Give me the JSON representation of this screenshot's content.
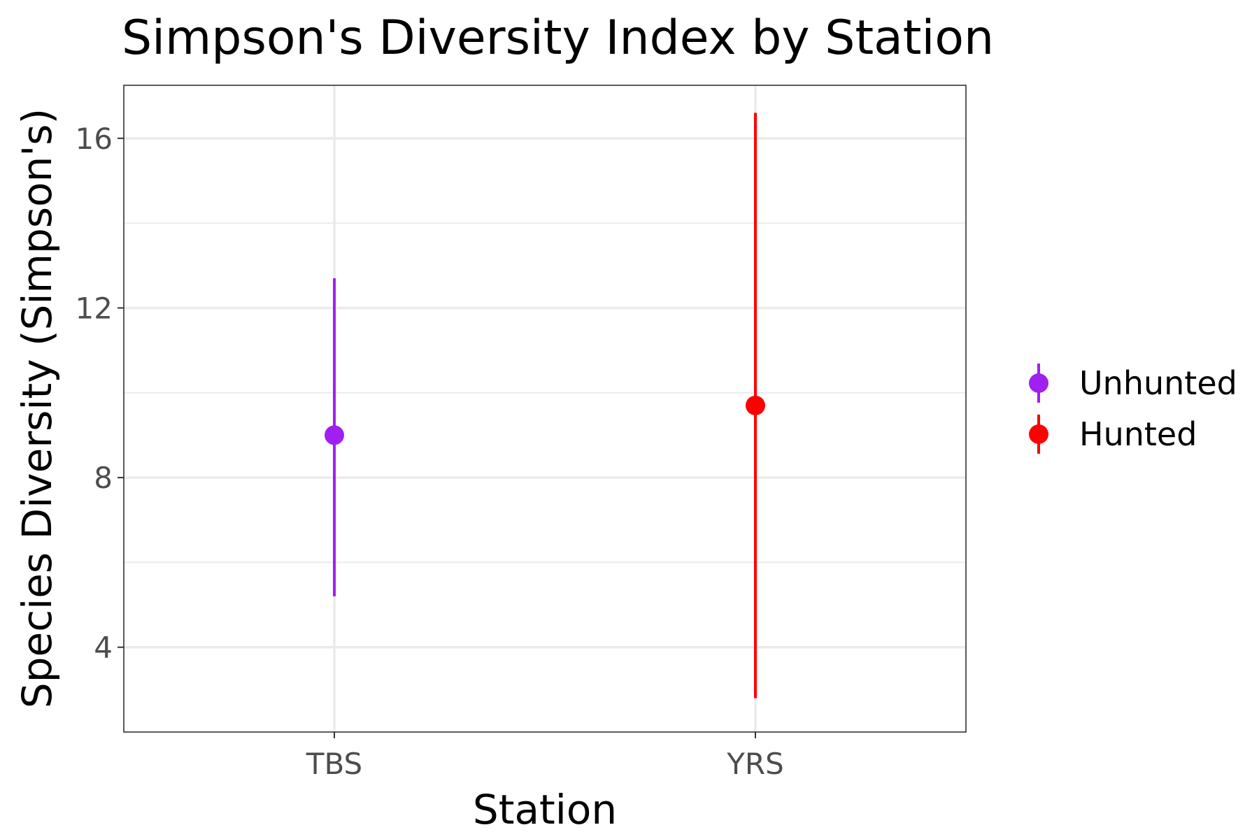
{
  "chart_data": {
    "type": "scatter",
    "title": "Simpson's Diversity Index by Station",
    "xlabel": "Station",
    "ylabel": "Species Diversity (Simpson's)",
    "categories": [
      "TBS",
      "YRS"
    ],
    "ylim": [
      2.0,
      17.25
    ],
    "yticks": [
      4,
      8,
      12,
      16
    ],
    "y_minor_ticks": [
      6,
      10,
      14
    ],
    "grid": true,
    "legend_position": "right",
    "series": [
      {
        "name": "Unhunted",
        "color": "#a020f0",
        "category": "TBS",
        "value": 9.0,
        "lower": 5.2,
        "upper": 12.7
      },
      {
        "name": "Hunted",
        "color": "#ff0000",
        "category": "YRS",
        "value": 9.7,
        "lower": 2.8,
        "upper": 16.6
      }
    ]
  }
}
